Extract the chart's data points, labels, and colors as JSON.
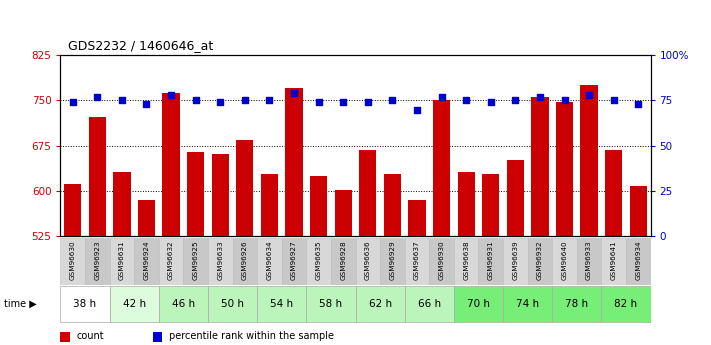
{
  "title": "GDS2232 / 1460646_at",
  "samples": [
    "GSM96630",
    "GSM96923",
    "GSM96631",
    "GSM96924",
    "GSM96632",
    "GSM96925",
    "GSM96633",
    "GSM96926",
    "GSM96634",
    "GSM96927",
    "GSM96635",
    "GSM96928",
    "GSM96636",
    "GSM96929",
    "GSM96637",
    "GSM96930",
    "GSM96638",
    "GSM96931",
    "GSM96639",
    "GSM96932",
    "GSM96640",
    "GSM96933",
    "GSM96641",
    "GSM96934"
  ],
  "counts": [
    612,
    722,
    632,
    585,
    762,
    665,
    662,
    685,
    628,
    770,
    625,
    602,
    668,
    628,
    585,
    750,
    632,
    628,
    652,
    755,
    748,
    775,
    668,
    608
  ],
  "percentile_ranks": [
    74,
    77,
    75,
    73,
    78,
    75,
    74,
    75,
    75,
    79,
    74,
    74,
    74,
    75,
    70,
    77,
    75,
    74,
    75,
    77,
    75,
    78,
    75,
    73
  ],
  "time_groups": [
    {
      "label": "38 h",
      "indices": [
        0,
        1
      ],
      "color": "#ffffff"
    },
    {
      "label": "42 h",
      "indices": [
        2,
        3
      ],
      "color": "#ddfcdd"
    },
    {
      "label": "46 h",
      "indices": [
        4,
        5
      ],
      "color": "#bbf5bb"
    },
    {
      "label": "50 h",
      "indices": [
        6,
        7
      ],
      "color": "#bbf5bb"
    },
    {
      "label": "54 h",
      "indices": [
        8,
        9
      ],
      "color": "#bbf5bb"
    },
    {
      "label": "58 h",
      "indices": [
        10,
        11
      ],
      "color": "#bbf5bb"
    },
    {
      "label": "62 h",
      "indices": [
        12,
        13
      ],
      "color": "#bbf5bb"
    },
    {
      "label": "66 h",
      "indices": [
        14,
        15
      ],
      "color": "#bbf5bb"
    },
    {
      "label": "70 h",
      "indices": [
        16,
        17
      ],
      "color": "#77ee77"
    },
    {
      "label": "74 h",
      "indices": [
        18,
        19
      ],
      "color": "#77ee77"
    },
    {
      "label": "78 h",
      "indices": [
        20,
        21
      ],
      "color": "#77ee77"
    },
    {
      "label": "82 h",
      "indices": [
        22,
        23
      ],
      "color": "#77ee77"
    }
  ],
  "ymin": 525,
  "ymax": 825,
  "yticks_left": [
    525,
    600,
    675,
    750,
    825
  ],
  "yticks_right": [
    0,
    25,
    50,
    75,
    100
  ],
  "bar_color": "#cc0000",
  "dot_color": "#0000cc",
  "bg_color": "#ffffff",
  "plot_bg": "#ffffff",
  "label_count": "count",
  "label_pct": "percentile rank within the sample",
  "bar_width": 0.7,
  "baseline": 525,
  "figw": 7.11,
  "figh": 3.45
}
